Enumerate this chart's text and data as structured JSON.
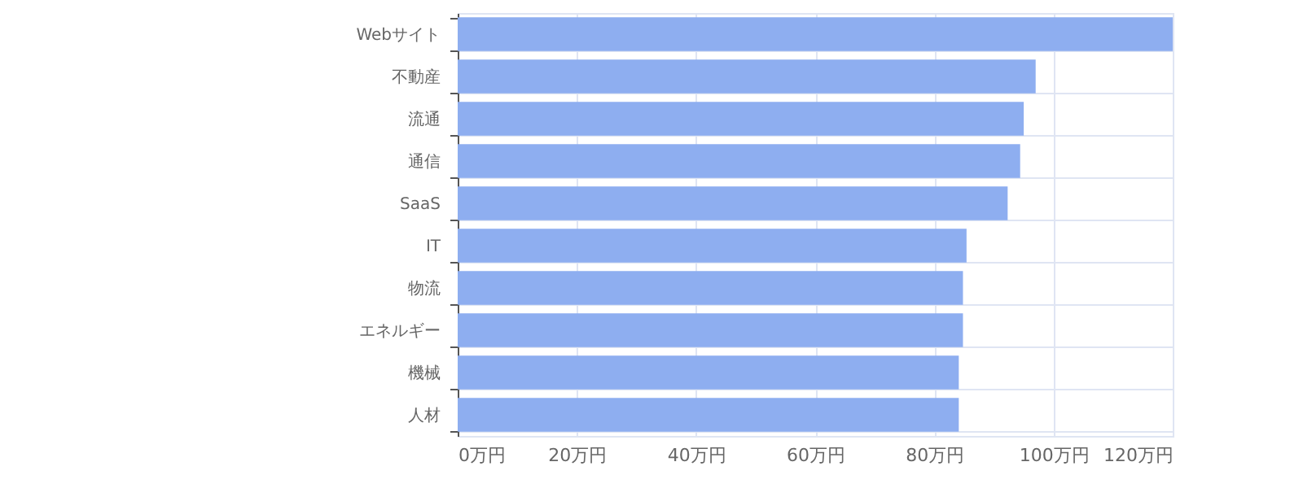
{
  "chart_data": {
    "type": "bar",
    "orientation": "horizontal",
    "categories": [
      "Webサイト",
      "不動産",
      "流通",
      "通信",
      "SaaS",
      "IT",
      "物流",
      "エネルギー",
      "機械",
      "人材"
    ],
    "values": [
      120,
      97,
      95,
      94.4,
      92.3,
      85.4,
      84.8,
      84.8,
      84.1,
      84.1
    ],
    "color": "#8eaef0",
    "xlim": [
      0,
      120
    ],
    "xticks": [
      {
        "value": 0,
        "label": "0万円"
      },
      {
        "value": 20,
        "label": "20万円"
      },
      {
        "value": 40,
        "label": "40万円"
      },
      {
        "value": 60,
        "label": "60万円"
      },
      {
        "value": 80,
        "label": "80万円"
      },
      {
        "value": 100,
        "label": "100万円"
      },
      {
        "value": 120,
        "label": "120万円"
      }
    ],
    "grid": true
  }
}
